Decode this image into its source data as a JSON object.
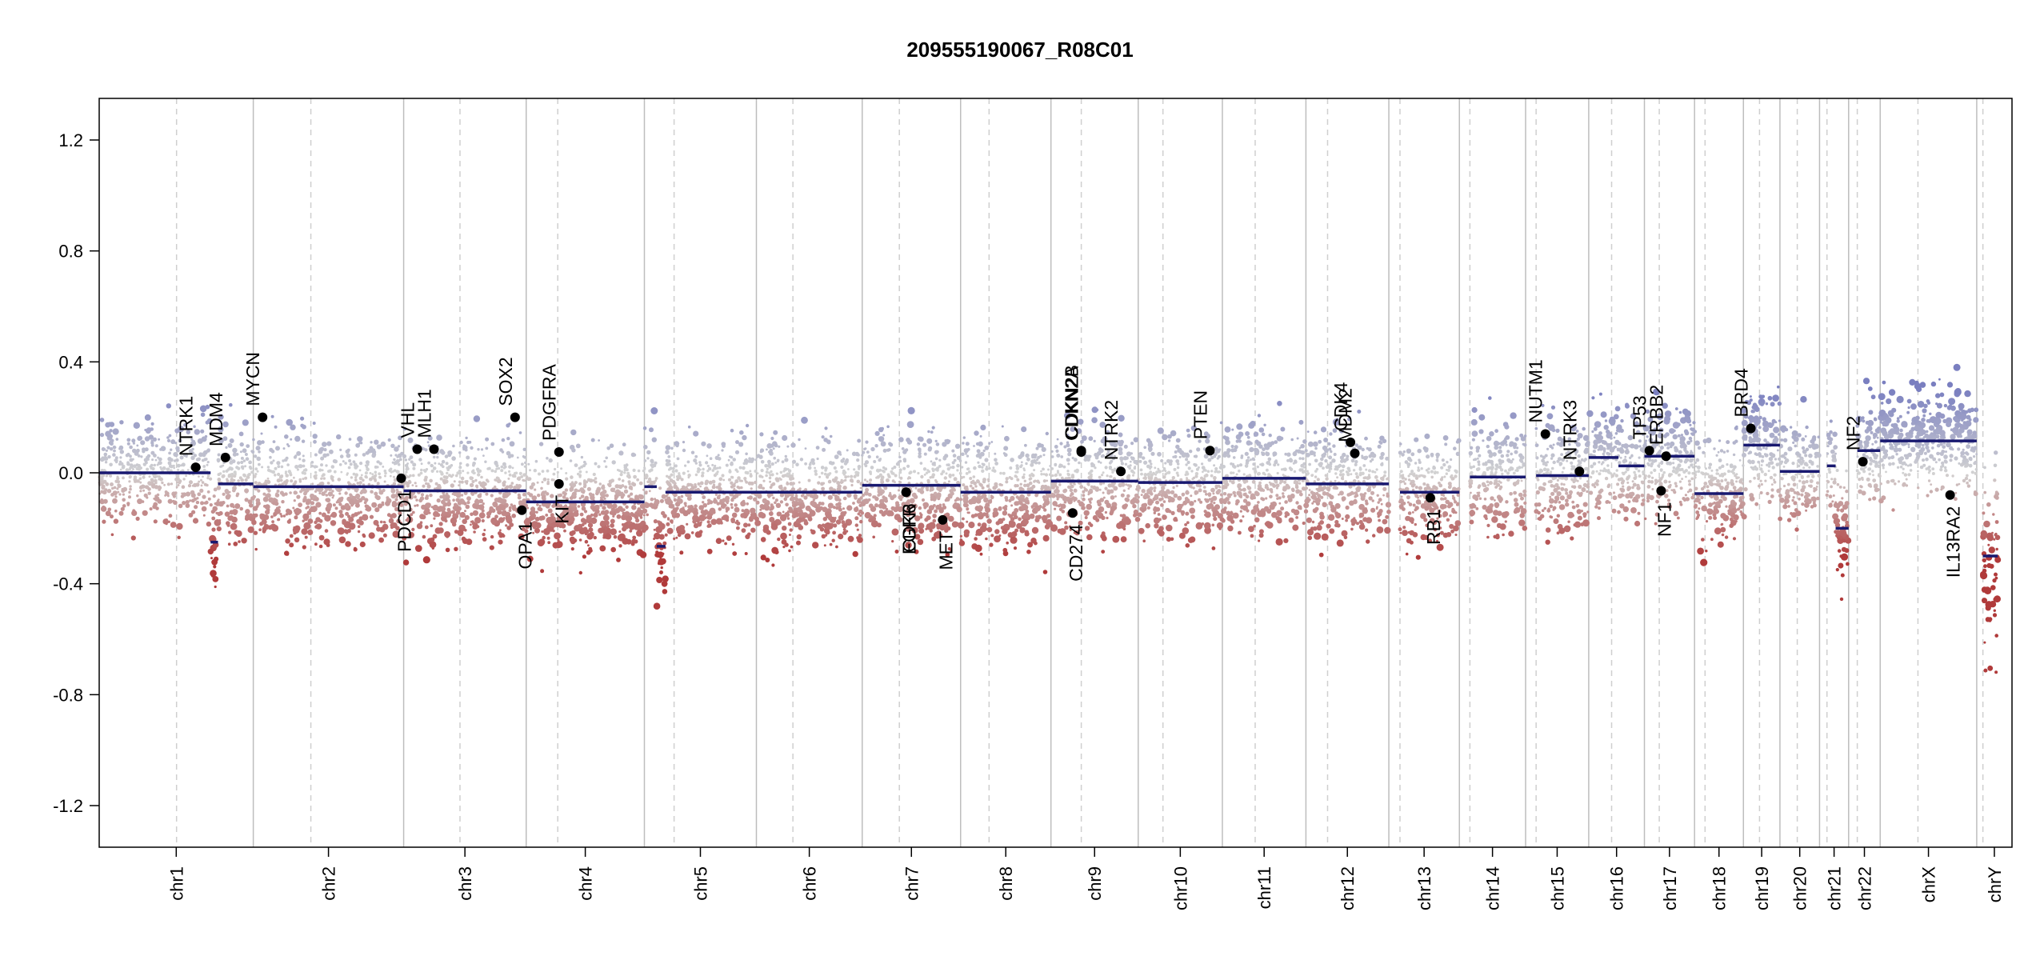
{
  "chart_data": {
    "type": "scatter",
    "title": "209555190067_R08C01",
    "xlabel": "",
    "ylabel": "",
    "ylim": [
      -1.35,
      1.35
    ],
    "y_ticks": [
      -1.2,
      -0.8,
      -0.4,
      0.0,
      0.4,
      0.8,
      1.2
    ],
    "y_tick_labels": [
      "-1.2",
      "-0.8",
      "-0.4",
      "0.0",
      "0.4",
      "0.8",
      "1.2"
    ],
    "chromosomes": [
      {
        "name": "chr1",
        "start": 0,
        "end": 249,
        "centromere": 125
      },
      {
        "name": "chr2",
        "start": 249,
        "end": 492,
        "centromere": 342
      },
      {
        "name": "chr3",
        "start": 492,
        "end": 690,
        "centromere": 583
      },
      {
        "name": "chr4",
        "start": 690,
        "end": 881,
        "centromere": 741
      },
      {
        "name": "chr5",
        "start": 881,
        "end": 1062,
        "centromere": 929
      },
      {
        "name": "chr6",
        "start": 1062,
        "end": 1233,
        "centromere": 1121
      },
      {
        "name": "chr7",
        "start": 1233,
        "end": 1392,
        "centromere": 1293
      },
      {
        "name": "chr8",
        "start": 1392,
        "end": 1538,
        "centromere": 1438
      },
      {
        "name": "chr9",
        "start": 1538,
        "end": 1679,
        "centromere": 1587
      },
      {
        "name": "chr10",
        "start": 1679,
        "end": 1815,
        "centromere": 1719
      },
      {
        "name": "chr11",
        "start": 1815,
        "end": 1950,
        "centromere": 1868
      },
      {
        "name": "chr12",
        "start": 1950,
        "end": 2084,
        "centromere": 1985
      },
      {
        "name": "chr13",
        "start": 2084,
        "end": 2198,
        "centromere": 2102
      },
      {
        "name": "chr14",
        "start": 2198,
        "end": 2305,
        "centromere": 2215
      },
      {
        "name": "chr15",
        "start": 2305,
        "end": 2407,
        "centromere": 2322
      },
      {
        "name": "chr16",
        "start": 2407,
        "end": 2497,
        "centromere": 2444
      },
      {
        "name": "chr17",
        "start": 2497,
        "end": 2578,
        "centromere": 2521
      },
      {
        "name": "chr18",
        "start": 2578,
        "end": 2657,
        "centromere": 2595
      },
      {
        "name": "chr19",
        "start": 2657,
        "end": 2716,
        "centromere": 2683
      },
      {
        "name": "chr20",
        "start": 2716,
        "end": 2780,
        "centromere": 2744
      },
      {
        "name": "chr21",
        "start": 2780,
        "end": 2827,
        "centromere": 2792
      },
      {
        "name": "chr22",
        "start": 2827,
        "end": 2878,
        "centromere": 2841
      },
      {
        "name": "chrX",
        "start": 2878,
        "end": 3034,
        "centromere": 2939
      },
      {
        "name": "chrY",
        "start": 3034,
        "end": 3091,
        "centromere": 3044
      }
    ],
    "segments": [
      {
        "x": [
          0,
          180
        ],
        "y": 0.0
      },
      {
        "x": [
          180,
          192
        ],
        "y": -0.25
      },
      {
        "x": [
          192,
          249
        ],
        "y": -0.04
      },
      {
        "x": [
          249,
          492
        ],
        "y": -0.05
      },
      {
        "x": [
          492,
          690
        ],
        "y": -0.065
      },
      {
        "x": [
          690,
          881
        ],
        "y": -0.105
      },
      {
        "x": [
          881,
          901
        ],
        "y": -0.05
      },
      {
        "x": [
          901,
          915
        ],
        "y": -0.265
      },
      {
        "x": [
          915,
          1062
        ],
        "y": -0.07
      },
      {
        "x": [
          1062,
          1233
        ],
        "y": -0.07
      },
      {
        "x": [
          1233,
          1392
        ],
        "y": -0.045
      },
      {
        "x": [
          1392,
          1538
        ],
        "y": -0.07
      },
      {
        "x": [
          1538,
          1679
        ],
        "y": -0.03
      },
      {
        "x": [
          1679,
          1815
        ],
        "y": -0.035
      },
      {
        "x": [
          1815,
          1950
        ],
        "y": -0.02
      },
      {
        "x": [
          1950,
          2084
        ],
        "y": -0.04
      },
      {
        "x": [
          2102,
          2198
        ],
        "y": -0.07
      },
      {
        "x": [
          2215,
          2305
        ],
        "y": -0.015
      },
      {
        "x": [
          2322,
          2407
        ],
        "y": -0.01
      },
      {
        "x": [
          2407,
          2455
        ],
        "y": 0.055
      },
      {
        "x": [
          2455,
          2497
        ],
        "y": 0.025
      },
      {
        "x": [
          2497,
          2578
        ],
        "y": 0.06
      },
      {
        "x": [
          2578,
          2657
        ],
        "y": -0.075
      },
      {
        "x": [
          2657,
          2716
        ],
        "y": 0.1
      },
      {
        "x": [
          2716,
          2780
        ],
        "y": 0.005
      },
      {
        "x": [
          2792,
          2806
        ],
        "y": 0.025
      },
      {
        "x": [
          2806,
          2827
        ],
        "y": -0.2
      },
      {
        "x": [
          2841,
          2878
        ],
        "y": 0.08
      },
      {
        "x": [
          2878,
          3034
        ],
        "y": 0.115
      },
      {
        "x": [
          3044,
          3068
        ],
        "y": -0.3
      }
    ],
    "genes": [
      {
        "name": "NTRK1",
        "x": 156,
        "y": 0.02,
        "label_side": "above"
      },
      {
        "name": "MDM4",
        "x": 204,
        "y": 0.055,
        "label_side": "above"
      },
      {
        "name": "MYCN",
        "x": 264,
        "y": 0.2,
        "label_side": "above"
      },
      {
        "name": "VHL",
        "x": 514,
        "y": 0.085,
        "label_side": "above"
      },
      {
        "name": "MLH1",
        "x": 541,
        "y": 0.085,
        "label_side": "above"
      },
      {
        "name": "PDCD1",
        "x": 488,
        "y": -0.02,
        "label_side": "below"
      },
      {
        "name": "SOX2",
        "x": 672,
        "y": 0.2,
        "label_side": "above"
      },
      {
        "name": "OPA1",
        "x": 683,
        "y": -0.135,
        "label_side": "below"
      },
      {
        "name": "PDGFRA",
        "x": 743,
        "y": 0.075,
        "label_side": "above"
      },
      {
        "name": "KIT",
        "x": 743,
        "y": -0.04,
        "label_side": "below"
      },
      {
        "name": "EGFR",
        "x": 1304,
        "y": -0.07,
        "label_side": "below"
      },
      {
        "name": "CDK6",
        "x": 1304,
        "y": -0.07,
        "label_side": "below"
      },
      {
        "name": "MET",
        "x": 1363,
        "y": -0.17,
        "label_side": "below"
      },
      {
        "name": "CDKN2A",
        "x": 1587,
        "y": 0.075,
        "label_side": "above"
      },
      {
        "name": "CDKN2B",
        "x": 1587,
        "y": 0.08,
        "label_side": "above"
      },
      {
        "name": "CD274",
        "x": 1573,
        "y": -0.145,
        "label_side": "below"
      },
      {
        "name": "NTRK2",
        "x": 1651,
        "y": 0.005,
        "label_side": "above"
      },
      {
        "name": "PTEN",
        "x": 1795,
        "y": 0.08,
        "label_side": "above"
      },
      {
        "name": "CDK4",
        "x": 2022,
        "y": 0.11,
        "label_side": "above"
      },
      {
        "name": "MDM2",
        "x": 2029,
        "y": 0.07,
        "label_side": "above"
      },
      {
        "name": "RB1",
        "x": 2151,
        "y": -0.09,
        "label_side": "below"
      },
      {
        "name": "NUTM1",
        "x": 2337,
        "y": 0.14,
        "label_side": "above"
      },
      {
        "name": "NTRK3",
        "x": 2392,
        "y": 0.005,
        "label_side": "above"
      },
      {
        "name": "TP53",
        "x": 2505,
        "y": 0.08,
        "label_side": "above"
      },
      {
        "name": "ERBB2",
        "x": 2532,
        "y": 0.06,
        "label_side": "above"
      },
      {
        "name": "NF1",
        "x": 2524,
        "y": -0.065,
        "label_side": "below"
      },
      {
        "name": "BRD4",
        "x": 2669,
        "y": 0.16,
        "label_side": "above"
      },
      {
        "name": "NF2",
        "x": 2850,
        "y": 0.04,
        "label_side": "above"
      },
      {
        "name": "IL13RA2",
        "x": 2991,
        "y": -0.08,
        "label_side": "below"
      }
    ],
    "colors": {
      "segment": "#191970",
      "gain_high": "#7a7fc0",
      "neutral": "#d2d2d2",
      "loss_low": "#b03a3a",
      "grid_solid": "#bdbdbd",
      "grid_dashed": "#cfcfcf",
      "gene_point": "#000000"
    },
    "grid": true,
    "legend": "none"
  }
}
